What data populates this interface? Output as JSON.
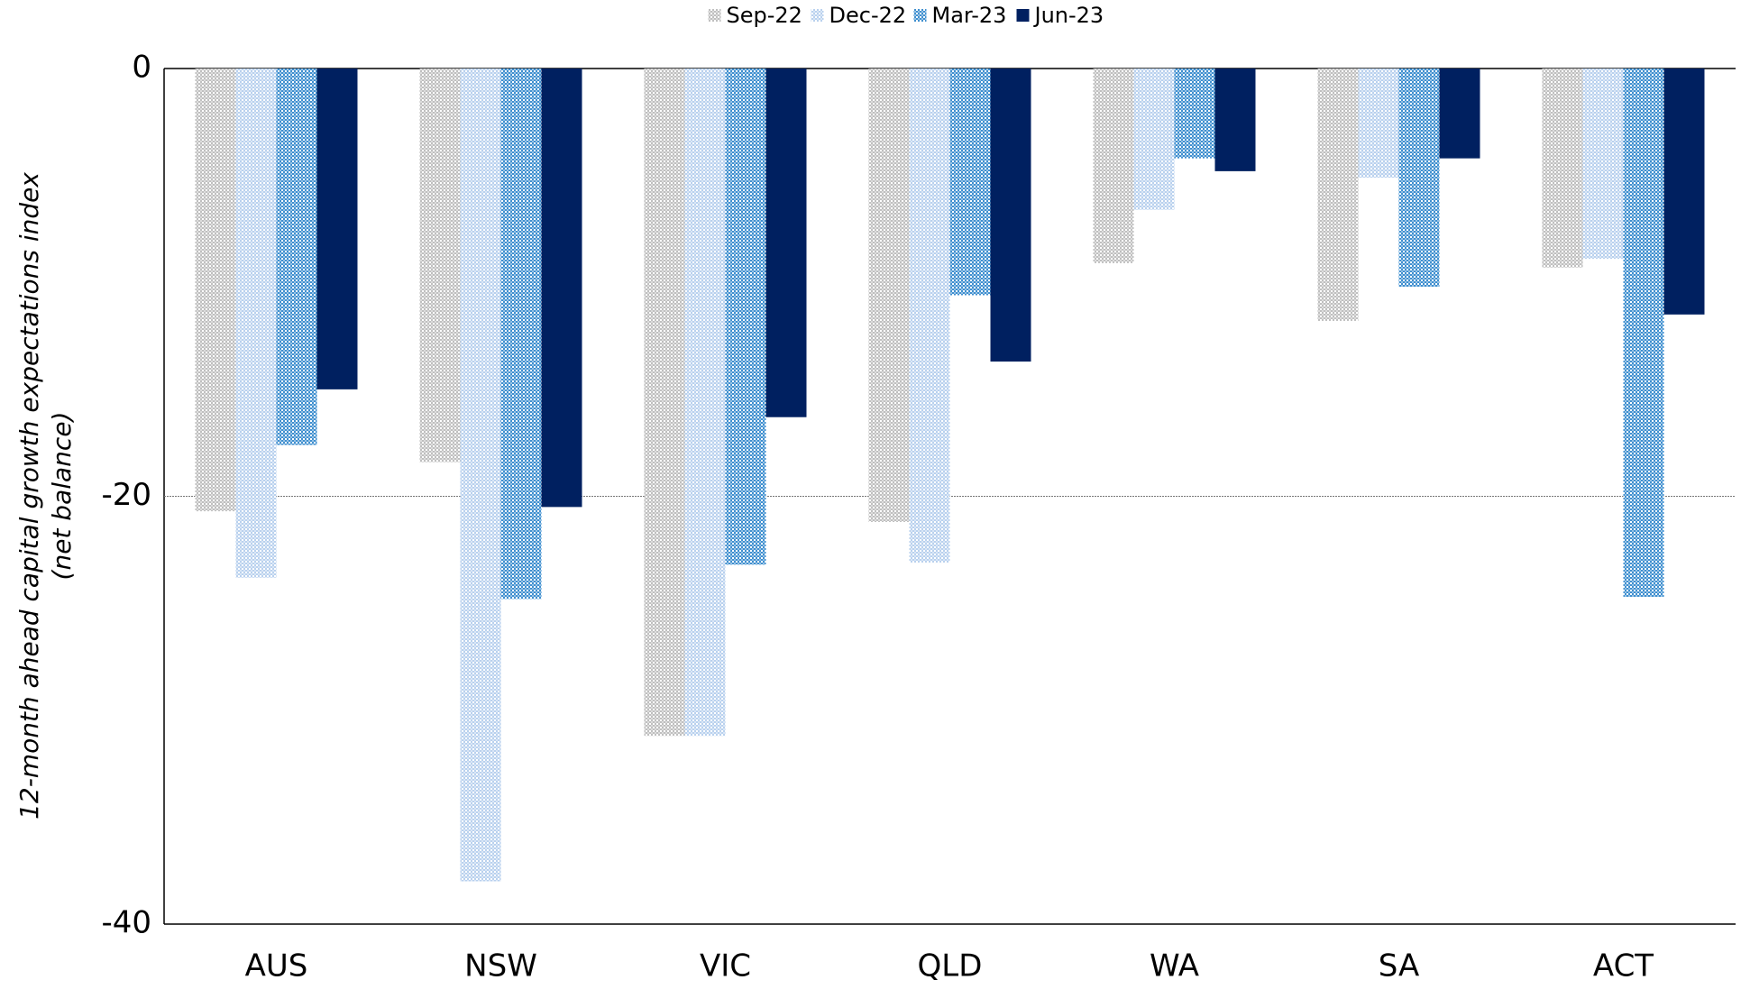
{
  "chart_data": {
    "type": "bar",
    "ylabel": [
      "12-month ahead capital growth expectations index",
      "(net balance)"
    ],
    "categories": [
      "AUS",
      "NSW",
      "VIC",
      "QLD",
      "WA",
      "SA",
      "ACT"
    ],
    "series": [
      {
        "name": "Sep-22",
        "color": "#bfbfbf",
        "values": [
          -20.7,
          -18.4,
          -31.2,
          -21.2,
          -9.1,
          -11.8,
          -9.3
        ]
      },
      {
        "name": "Dec-22",
        "color": "#b9d1ee",
        "values": [
          -23.8,
          -38.0,
          -31.2,
          -23.1,
          -6.6,
          -5.1,
          -8.9
        ]
      },
      {
        "name": "Mar-23",
        "color": "#3f8fcf",
        "values": [
          -17.6,
          -24.8,
          -23.2,
          -10.6,
          -4.2,
          -10.2,
          -24.7
        ]
      },
      {
        "name": "Jun-23",
        "color": "#002060",
        "values": [
          -15.0,
          -20.5,
          -16.3,
          -13.7,
          -4.8,
          -4.2,
          -11.5
        ]
      }
    ],
    "ylim": [
      -40,
      0
    ],
    "yticks": [
      0,
      -20,
      -40
    ],
    "grid": true,
    "legend": "top"
  }
}
